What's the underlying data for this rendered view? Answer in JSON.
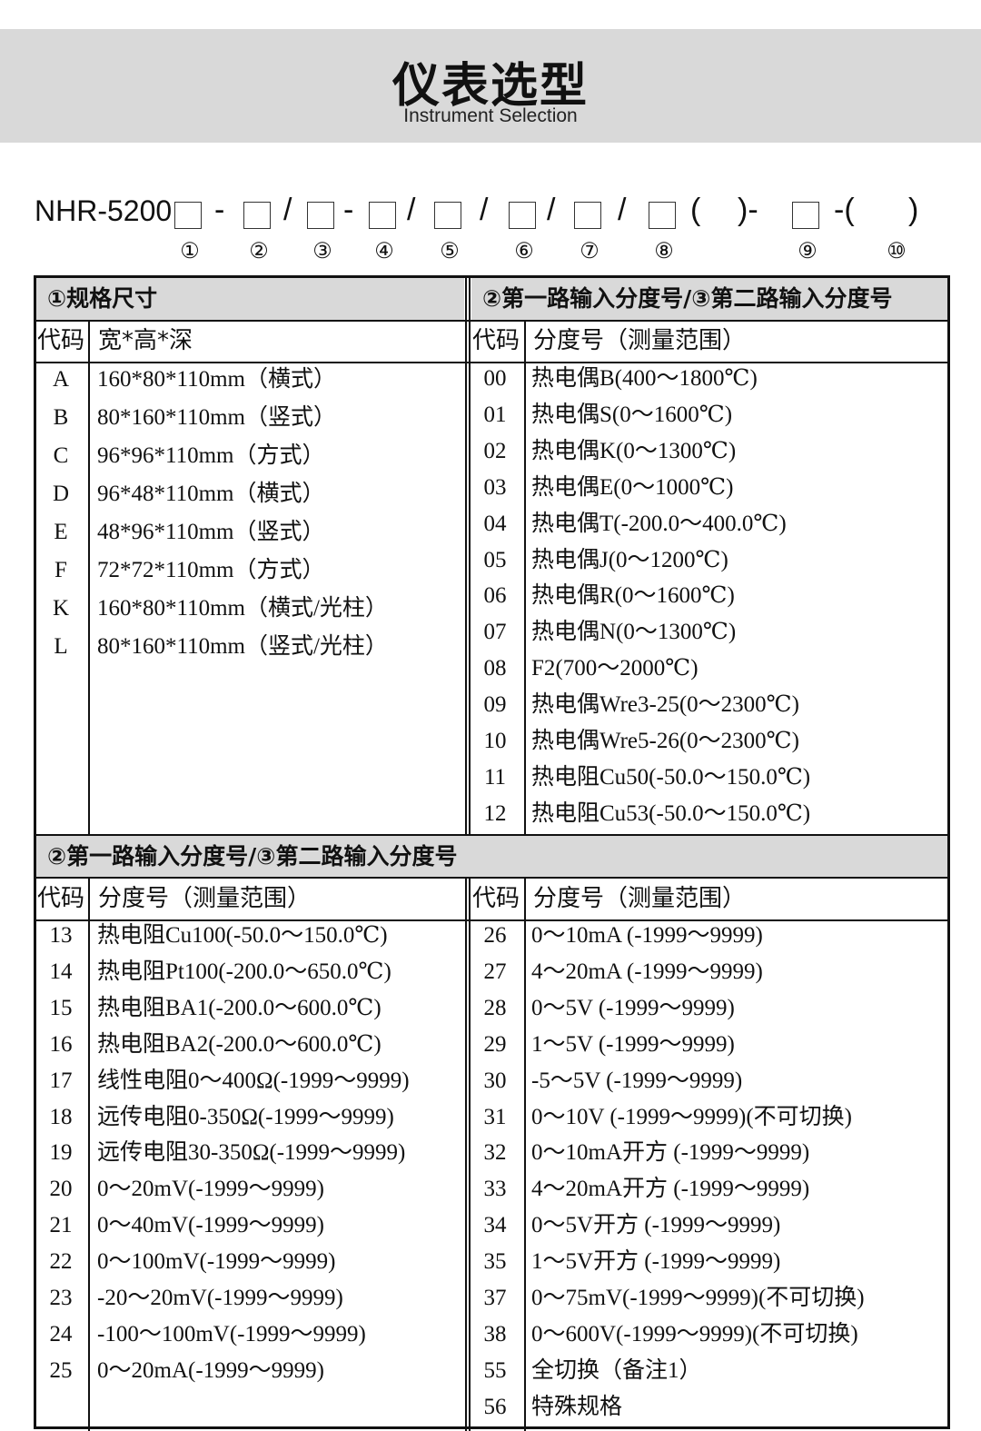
{
  "header": {
    "title": "仪表选型",
    "subtitle": "Instrument Selection"
  },
  "model": {
    "prefix": "NHR-5200",
    "numbers": [
      "①",
      "②",
      "③",
      "④",
      "⑤",
      "⑥",
      "⑦",
      "⑧",
      "⑨",
      "⑩"
    ]
  },
  "section1": {
    "left_title": "①规格尺寸",
    "right_title": "②第一路输入分度号/③第二路输入分度号",
    "left_headers": [
      "代码",
      "宽*高*深"
    ],
    "right_headers": [
      "代码",
      "分度号（测量范围）"
    ],
    "left_rows": [
      [
        "A",
        "160*80*110mm（横式）"
      ],
      [
        "B",
        "80*160*110mm（竖式）"
      ],
      [
        "C",
        "96*96*110mm（方式）"
      ],
      [
        "D",
        "96*48*110mm（横式）"
      ],
      [
        "E",
        "48*96*110mm（竖式）"
      ],
      [
        "F",
        "72*72*110mm（方式）"
      ],
      [
        "K",
        "160*80*110mm（横式/光柱）"
      ],
      [
        "L",
        "80*160*110mm（竖式/光柱）"
      ]
    ],
    "right_rows": [
      [
        "00",
        "热电偶B(400～1800℃)"
      ],
      [
        "01",
        "热电偶S(0～1600℃)"
      ],
      [
        "02",
        "热电偶K(0～1300℃)"
      ],
      [
        "03",
        "热电偶E(0～1000℃)"
      ],
      [
        "04",
        "热电偶T(-200.0～400.0℃)"
      ],
      [
        "05",
        "热电偶J(0～1200℃)"
      ],
      [
        "06",
        "热电偶R(0～1600℃)"
      ],
      [
        "07",
        "热电偶N(0～1300℃)"
      ],
      [
        "08",
        "F2(700～2000℃)"
      ],
      [
        "09",
        "热电偶Wre3-25(0～2300℃)"
      ],
      [
        "10",
        "热电偶Wre5-26(0～2300℃)"
      ],
      [
        "11",
        "热电阻Cu50(-50.0～150.0℃)"
      ],
      [
        "12",
        "热电阻Cu53(-50.0～150.0℃)"
      ]
    ]
  },
  "section2": {
    "title": "②第一路输入分度号/③第二路输入分度号",
    "left_headers": [
      "代码",
      "分度号（测量范围）"
    ],
    "right_headers": [
      "代码",
      "分度号（测量范围）"
    ],
    "left_rows": [
      [
        "13",
        "热电阻Cu100(-50.0～150.0℃)"
      ],
      [
        "14",
        "热电阻Pt100(-200.0～650.0℃)"
      ],
      [
        "15",
        "热电阻BA1(-200.0～600.0℃)"
      ],
      [
        "16",
        "热电阻BA2(-200.0～600.0℃)"
      ],
      [
        "17",
        "线性电阻0～400Ω(-1999～9999)"
      ],
      [
        "18",
        "远传电阻0-350Ω(-1999～9999)"
      ],
      [
        "19",
        "远传电阻30-350Ω(-1999～9999)"
      ],
      [
        "20",
        "0～20mV(-1999～9999)"
      ],
      [
        "21",
        "0～40mV(-1999～9999)"
      ],
      [
        "22",
        "0～100mV(-1999～9999)"
      ],
      [
        "23",
        "-20～20mV(-1999～9999)"
      ],
      [
        "24",
        "-100～100mV(-1999～9999)"
      ],
      [
        "25",
        "0～20mA(-1999～9999)"
      ]
    ],
    "right_rows": [
      [
        "26",
        "0～10mA (-1999～9999)"
      ],
      [
        "27",
        "4～20mA (-1999～9999)"
      ],
      [
        "28",
        "0～5V (-1999～9999)"
      ],
      [
        "29",
        "1～5V (-1999～9999)"
      ],
      [
        "30",
        "-5～5V (-1999～9999)"
      ],
      [
        "31",
        "0～10V (-1999～9999)(不可切换)"
      ],
      [
        "32",
        "0～10mA开方 (-1999～9999)"
      ],
      [
        "33",
        "4～20mA开方 (-1999～9999)"
      ],
      [
        "34",
        "0～5V开方 (-1999～9999)"
      ],
      [
        "35",
        "1～5V开方 (-1999～9999)"
      ],
      [
        "37",
        "0～75mV(-1999～9999)(不可切换)"
      ],
      [
        "38",
        "0～600V(-1999～9999)(不可切换)"
      ],
      [
        "55",
        "全切换（备注1）"
      ],
      [
        "56",
        "特殊规格"
      ]
    ]
  }
}
